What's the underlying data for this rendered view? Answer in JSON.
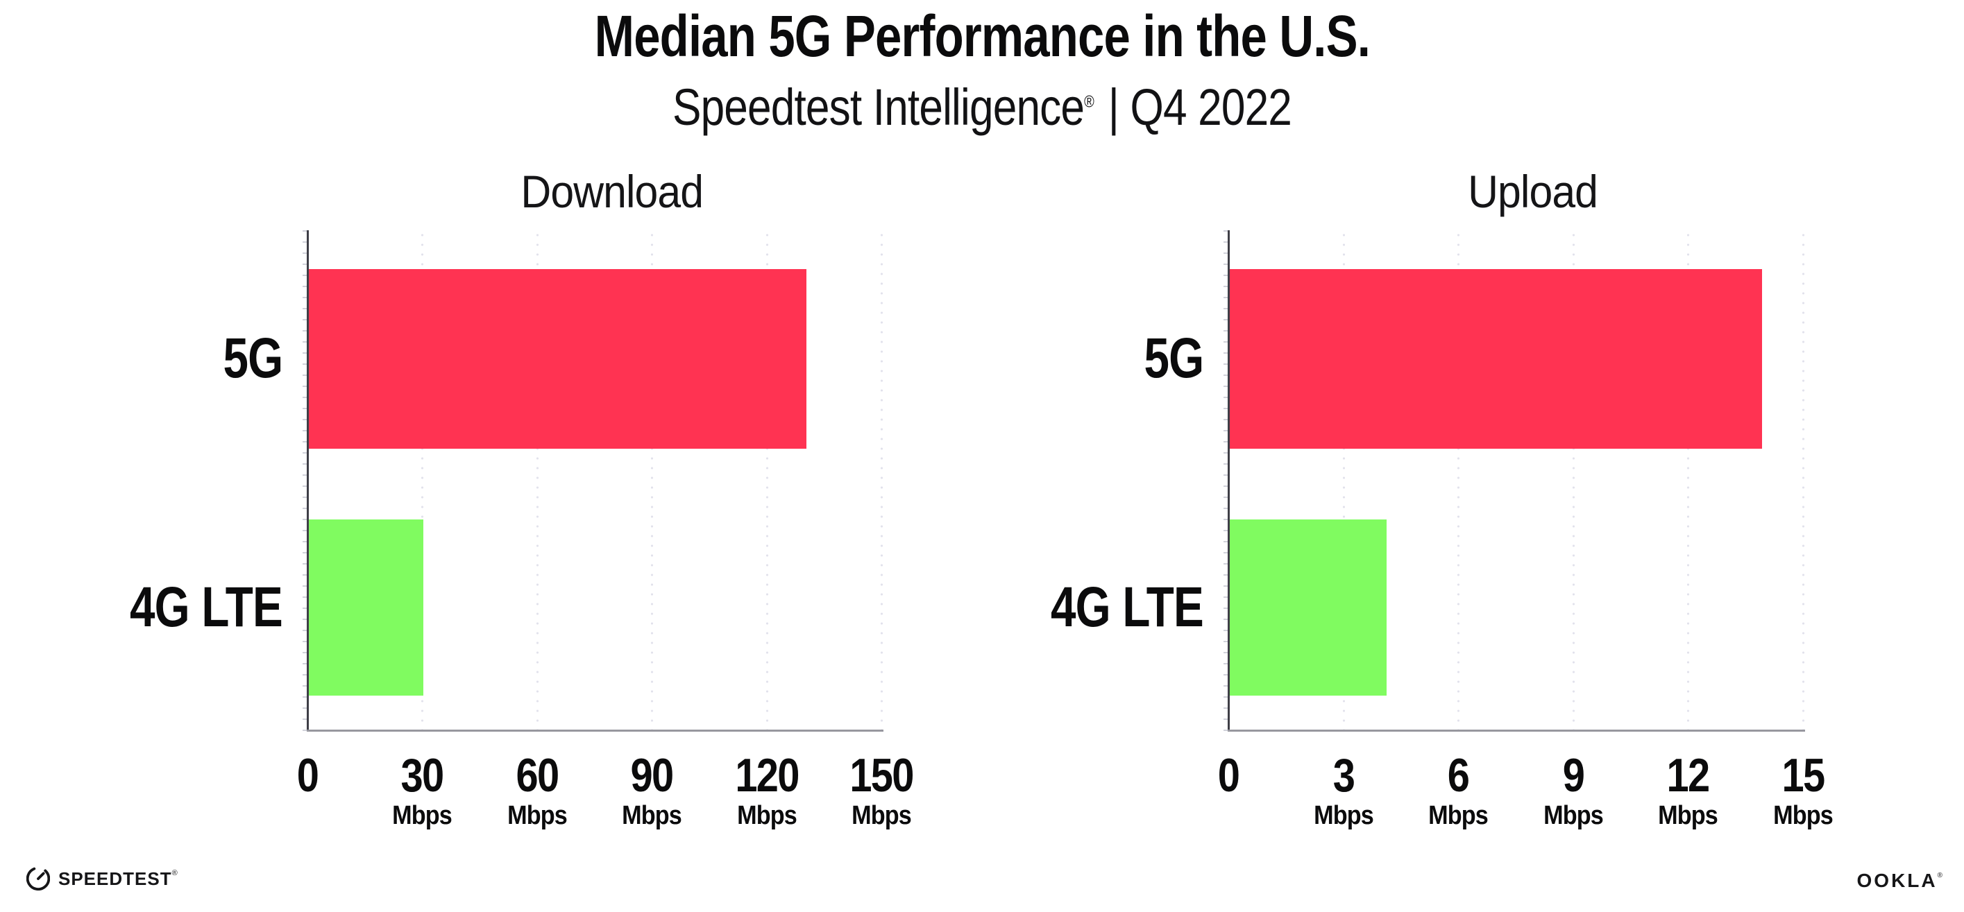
{
  "header": {
    "title": "Median 5G Performance in the U.S.",
    "subtitle_brand": "Speedtest Intelligence",
    "subtitle_reg": "®",
    "subtitle_rest": "| Q4 2022"
  },
  "chart_data": [
    {
      "type": "bar",
      "orientation": "horizontal",
      "title": "Download",
      "categories": [
        "5G",
        "4G LTE"
      ],
      "values": [
        130,
        30
      ],
      "unit_label": "Mbps",
      "xlim": [
        0,
        150
      ],
      "xticks": [
        0,
        30,
        60,
        90,
        120,
        150
      ],
      "bar_colors": [
        "#FF3352",
        "#80FB60"
      ],
      "grid": "dotted-vertical-gridlines",
      "legend": "none"
    },
    {
      "type": "bar",
      "orientation": "horizontal",
      "title": "Upload",
      "categories": [
        "5G",
        "4G LTE"
      ],
      "values": [
        13.9,
        4.1
      ],
      "unit_label": "Mbps",
      "xlim": [
        0,
        15
      ],
      "xticks": [
        0,
        3,
        6,
        9,
        12,
        15
      ],
      "bar_colors": [
        "#FF3352",
        "#80FB60"
      ],
      "grid": "dotted-vertical-gridlines",
      "legend": "none"
    }
  ],
  "colors": {
    "bar_5g": "#FF3352",
    "bar_4g_lte": "#80FB60",
    "y_axis_line": "#3f3f47",
    "x_axis_line": "#97979f",
    "gridline": "#e2e2ec",
    "text": "#0b0b0c",
    "background": "#ffffff"
  },
  "footer": {
    "speedtest_label": "SPEEDTEST",
    "speedtest_mark": "®",
    "ookla_label": "OOKLA",
    "ookla_mark": "®"
  }
}
